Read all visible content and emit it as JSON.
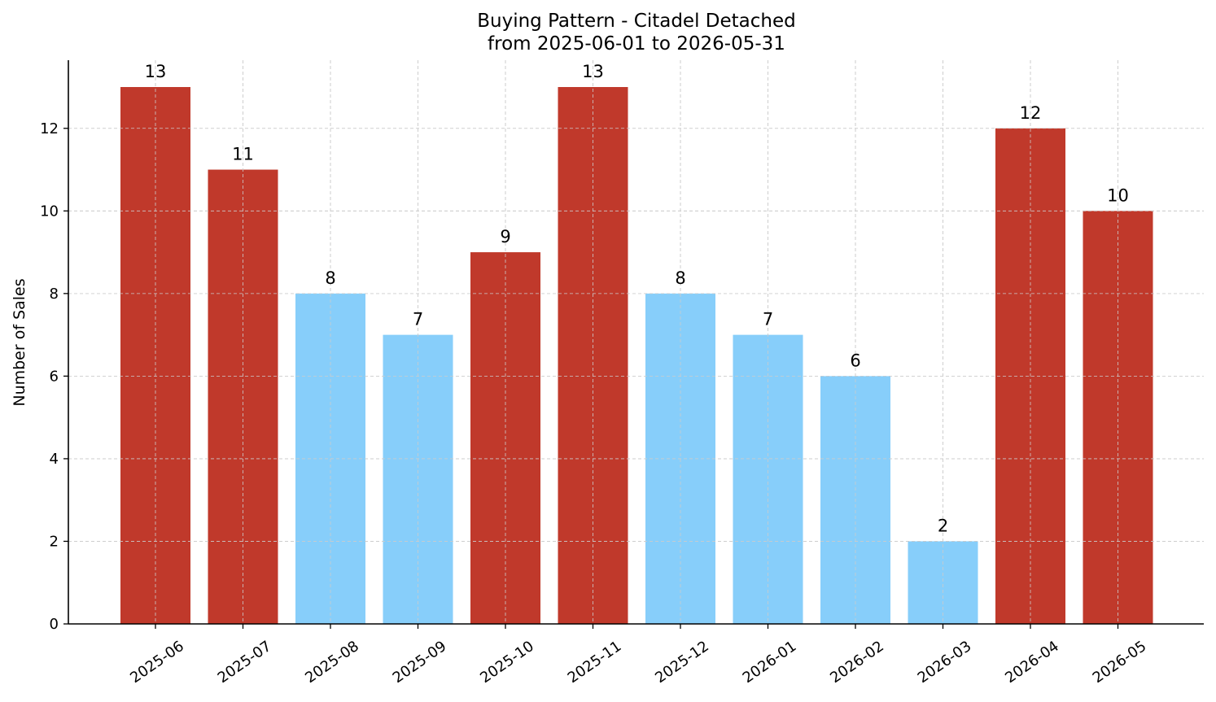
{
  "chart_data": {
    "type": "bar",
    "title": "Buying Pattern - Citadel Detached",
    "subtitle": "from 2025-06-01 to 2026-05-31",
    "xlabel": "",
    "ylabel": "Number of Sales",
    "categories": [
      "2025-06",
      "2025-07",
      "2025-08",
      "2025-09",
      "2025-10",
      "2025-11",
      "2025-12",
      "2026-01",
      "2026-02",
      "2026-03",
      "2026-04",
      "2026-05"
    ],
    "values": [
      13,
      11,
      8,
      7,
      9,
      13,
      8,
      7,
      6,
      2,
      12,
      10
    ],
    "bar_colors": [
      "#c0392b",
      "#c0392b",
      "#87cefa",
      "#87cefa",
      "#c0392b",
      "#c0392b",
      "#87cefa",
      "#87cefa",
      "#87cefa",
      "#87cefa",
      "#c0392b",
      "#c0392b"
    ],
    "ylim": [
      0,
      13.65
    ],
    "yticks": [
      0,
      2,
      4,
      6,
      8,
      10,
      12
    ],
    "grid": true,
    "legend": "none",
    "show_value_labels": true
  }
}
